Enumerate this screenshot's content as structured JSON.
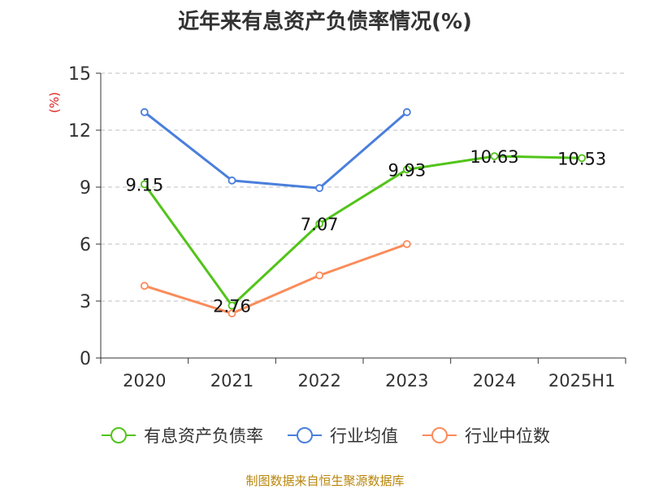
{
  "chart_data": {
    "type": "line",
    "title": "近年来有息资产负债率情况(%)",
    "ylabel": "(%)",
    "xlabel": "",
    "categories": [
      "2020",
      "2021",
      "2022",
      "2023",
      "2024",
      "2025H1"
    ],
    "ylim": [
      0,
      15
    ],
    "yticks": [
      0,
      3,
      6,
      9,
      12,
      15
    ],
    "grid": true,
    "legend_position": "bottom",
    "series": [
      {
        "name": "有息资产负债率",
        "color": "#52c41a",
        "values": [
          9.15,
          2.76,
          7.07,
          9.93,
          10.63,
          10.53
        ],
        "labels": [
          "9.15",
          "2.76",
          "7.07",
          "9.93",
          "10.63",
          "10.53"
        ]
      },
      {
        "name": "行业均值",
        "color": "#4a7fdc",
        "values": [
          12.95,
          9.35,
          8.95,
          12.95,
          null,
          null
        ]
      },
      {
        "name": "行业中位数",
        "color": "#fa8c5a",
        "values": [
          3.8,
          2.35,
          4.35,
          6.0,
          null,
          null
        ]
      }
    ]
  },
  "source": "制图数据来自恒生聚源数据库"
}
